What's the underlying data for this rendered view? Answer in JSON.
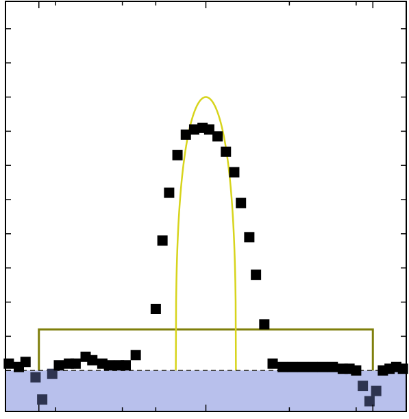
{
  "chart_data": {
    "type": "scatter",
    "title": "",
    "xlabel": "",
    "ylabel": "",
    "xlim": [
      -6,
      6
    ],
    "ylim": [
      -1.2,
      10.8
    ],
    "x_ticks_major": [
      -5,
      0,
      5
    ],
    "x_ticks_minor": [
      -4.5,
      -2.5,
      -1.5,
      2.5,
      4.5
    ],
    "y_ticks": [
      0,
      1,
      2,
      3,
      4,
      5,
      6,
      7,
      8,
      9,
      10
    ],
    "grid": false,
    "legend": "none",
    "baseline_y": 0,
    "colors": {
      "frame": "#000000",
      "markers": "#000000",
      "markers_below": "#2e3450",
      "shaded_region": "#b8c0ec",
      "arch_curve": "#d7d41c",
      "box_outline": "#7f7f0b",
      "baseline": "#333333"
    },
    "series": [
      {
        "kind": "points",
        "points": [
          [
            -5.9,
            0.2
          ],
          [
            -5.6,
            0.1
          ],
          [
            -5.4,
            0.25
          ],
          [
            -5.1,
            -0.2
          ],
          [
            -4.9,
            -0.85
          ],
          [
            -4.6,
            -0.1
          ],
          [
            -4.4,
            0.15
          ],
          [
            -4.1,
            0.2
          ],
          [
            -3.9,
            0.2
          ],
          [
            -3.6,
            0.4
          ],
          [
            -3.4,
            0.3
          ],
          [
            -3.1,
            0.2
          ],
          [
            -2.9,
            0.15
          ],
          [
            -2.6,
            0.15
          ],
          [
            -2.4,
            0.15
          ],
          [
            -2.1,
            0.45
          ],
          [
            -1.5,
            1.8
          ],
          [
            -1.3,
            3.8
          ],
          [
            -1.1,
            5.2
          ],
          [
            -0.85,
            6.3
          ],
          [
            -0.6,
            6.9
          ],
          [
            -0.35,
            7.05
          ],
          [
            -0.1,
            7.1
          ],
          [
            0.1,
            7.05
          ],
          [
            0.35,
            6.85
          ],
          [
            0.6,
            6.4
          ],
          [
            0.85,
            5.8
          ],
          [
            1.05,
            4.9
          ],
          [
            1.3,
            3.9
          ],
          [
            1.5,
            2.8
          ],
          [
            1.75,
            1.35
          ],
          [
            2.0,
            0.2
          ],
          [
            2.3,
            0.1
          ],
          [
            2.6,
            0.1
          ],
          [
            2.9,
            0.1
          ],
          [
            3.2,
            0.1
          ],
          [
            3.5,
            0.1
          ],
          [
            3.8,
            0.1
          ],
          [
            4.1,
            0.05
          ],
          [
            4.3,
            0.05
          ],
          [
            4.5,
            0.0
          ],
          [
            4.7,
            -0.45
          ],
          [
            4.9,
            -0.9
          ],
          [
            5.1,
            -0.6
          ],
          [
            5.3,
            0.0
          ],
          [
            5.5,
            0.05
          ],
          [
            5.7,
            0.1
          ],
          [
            5.9,
            0.05
          ]
        ]
      },
      {
        "kind": "curve",
        "shape": "arch",
        "x_range": [
          -0.9,
          0.9
        ],
        "peak": 8.0,
        "base": 0
      },
      {
        "kind": "box",
        "x_range": [
          -5.0,
          5.0
        ],
        "y_top": 1.2,
        "y_bottom": 0
      },
      {
        "kind": "band",
        "y_range": [
          -1.2,
          0
        ]
      }
    ]
  }
}
